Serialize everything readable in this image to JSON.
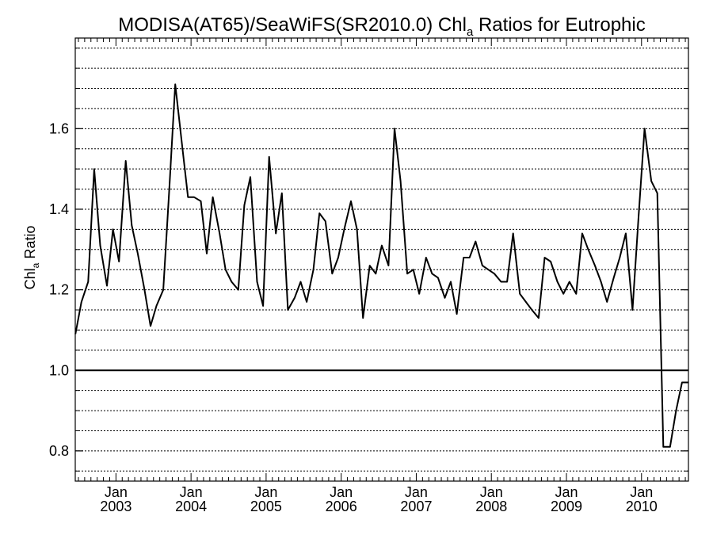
{
  "chart_data": {
    "type": "line",
    "title": {
      "main": "MODISA(AT65)/SeaWiFS(SR2010.0)  Chl",
      "sub": "a",
      "rest": " Ratios for Eutrophic"
    },
    "ylabel": {
      "main": "Chl",
      "sub": "a",
      "rest": " Ratio"
    },
    "xlabel": "",
    "xlim": [
      2002.458,
      2010.625
    ],
    "ylim": [
      0.725,
      1.825
    ],
    "grid": "horizontal dotted",
    "reference_line": 1.0,
    "y_ticks": [
      "0.8",
      "1.0",
      "1.2",
      "1.4",
      "1.6"
    ],
    "y_tick_values": [
      0.8,
      1.0,
      1.2,
      1.4,
      1.6
    ],
    "x_ticks": [
      {
        "value": 2003.0,
        "month": "Jan",
        "year": "2003"
      },
      {
        "value": 2004.0,
        "month": "Jan",
        "year": "2004"
      },
      {
        "value": 2005.0,
        "month": "Jan",
        "year": "2005"
      },
      {
        "value": 2006.0,
        "month": "Jan",
        "year": "2006"
      },
      {
        "value": 2007.0,
        "month": "Jan",
        "year": "2007"
      },
      {
        "value": 2008.0,
        "month": "Jan",
        "year": "2008"
      },
      {
        "value": 2009.0,
        "month": "Jan",
        "year": "2009"
      },
      {
        "value": 2010.0,
        "month": "Jan",
        "year": "2010"
      }
    ],
    "series": [
      {
        "x": [
          2002.46,
          2002.54,
          2002.63,
          2002.71,
          2002.79,
          2002.88,
          2002.96,
          2003.04,
          2003.13,
          2003.21,
          2003.29,
          2003.38,
          2003.46,
          2003.54,
          2003.63,
          2003.71,
          2003.79,
          2003.88,
          2003.96,
          2004.04,
          2004.13,
          2004.21,
          2004.29,
          2004.38,
          2004.46,
          2004.54,
          2004.63,
          2004.71,
          2004.79,
          2004.88,
          2004.96,
          2005.04,
          2005.13,
          2005.21,
          2005.29,
          2005.38,
          2005.46,
          2005.54,
          2005.63,
          2005.71,
          2005.79,
          2005.88,
          2005.96,
          2006.04,
          2006.13,
          2006.21,
          2006.29,
          2006.38,
          2006.46,
          2006.54,
          2006.63,
          2006.71,
          2006.79,
          2006.88,
          2006.96,
          2007.04,
          2007.13,
          2007.21,
          2007.29,
          2007.38,
          2007.46,
          2007.54,
          2007.63,
          2007.71,
          2007.79,
          2007.88,
          2007.96,
          2008.04,
          2008.13,
          2008.21,
          2008.29,
          2008.38,
          2008.46,
          2008.54,
          2008.63,
          2008.71,
          2008.79,
          2008.88,
          2008.96,
          2009.04,
          2009.13,
          2009.21,
          2009.29,
          2009.38,
          2009.46,
          2009.54,
          2009.63,
          2009.71,
          2009.79,
          2009.88,
          2009.96,
          2010.04,
          2010.13,
          2010.21,
          2010.29,
          2010.38,
          2010.46,
          2010.54,
          2010.63
        ],
        "y": [
          1.09,
          1.17,
          1.22,
          1.5,
          1.31,
          1.21,
          1.35,
          1.27,
          1.52,
          1.36,
          1.29,
          1.2,
          1.11,
          1.16,
          1.2,
          1.45,
          1.71,
          1.56,
          1.43,
          1.43,
          1.42,
          1.29,
          1.43,
          1.34,
          1.25,
          1.22,
          1.2,
          1.41,
          1.48,
          1.22,
          1.16,
          1.53,
          1.34,
          1.44,
          1.15,
          1.18,
          1.22,
          1.17,
          1.25,
          1.39,
          1.37,
          1.24,
          1.28,
          1.35,
          1.42,
          1.35,
          1.13,
          1.26,
          1.24,
          1.31,
          1.26,
          1.6,
          1.47,
          1.24,
          1.25,
          1.19,
          1.28,
          1.24,
          1.23,
          1.18,
          1.22,
          1.14,
          1.28,
          1.28,
          1.32,
          1.26,
          1.25,
          1.24,
          1.22,
          1.22,
          1.34,
          1.19,
          1.17,
          1.15,
          1.13,
          1.28,
          1.27,
          1.22,
          1.19,
          1.22,
          1.19,
          1.34,
          1.3,
          1.26,
          1.22,
          1.17,
          1.23,
          1.28,
          1.34,
          1.15,
          1.38,
          1.6,
          1.47,
          1.44,
          0.81,
          0.81,
          0.9,
          0.97,
          0.97
        ]
      }
    ]
  }
}
